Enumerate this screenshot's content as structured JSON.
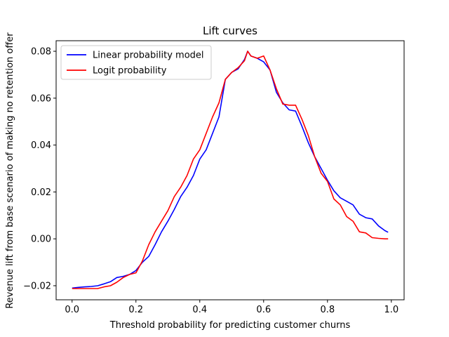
{
  "chart_data": {
    "type": "line",
    "title": "Lift curves",
    "xlabel": "Threshold probability for predicting customer churns",
    "ylabel": "Revenue lift from base scenario of making no retention offer",
    "xlim": [
      -0.05,
      1.04
    ],
    "ylim": [
      -0.026,
      0.0845
    ],
    "xticks": [
      0.0,
      0.2,
      0.4,
      0.6,
      0.8,
      1.0
    ],
    "xtick_labels": [
      "0.0",
      "0.2",
      "0.4",
      "0.6",
      "0.8",
      "1.0"
    ],
    "yticks": [
      -0.02,
      0.0,
      0.02,
      0.04,
      0.06,
      0.08
    ],
    "ytick_labels": [
      "−0.02",
      "0.00",
      "0.02",
      "0.04",
      "0.06",
      "0.08"
    ],
    "grid": false,
    "legend_position": "upper-left",
    "series": [
      {
        "name": "Linear probability model",
        "color": "#0000ff",
        "x": [
          0.0,
          0.02,
          0.04,
          0.06,
          0.08,
          0.1,
          0.12,
          0.14,
          0.16,
          0.18,
          0.2,
          0.22,
          0.24,
          0.26,
          0.28,
          0.3,
          0.32,
          0.34,
          0.36,
          0.38,
          0.4,
          0.42,
          0.44,
          0.46,
          0.48,
          0.5,
          0.52,
          0.54,
          0.55,
          0.56,
          0.58,
          0.6,
          0.62,
          0.64,
          0.66,
          0.68,
          0.7,
          0.72,
          0.74,
          0.76,
          0.78,
          0.8,
          0.82,
          0.84,
          0.86,
          0.88,
          0.9,
          0.92,
          0.94,
          0.96,
          0.98,
          0.99
        ],
        "y": [
          -0.021,
          -0.0207,
          -0.0205,
          -0.0203,
          -0.02,
          -0.0192,
          -0.0183,
          -0.0165,
          -0.016,
          -0.0152,
          -0.0135,
          -0.01,
          -0.0075,
          -0.0025,
          0.003,
          0.0075,
          0.0125,
          0.018,
          0.022,
          0.027,
          0.034,
          0.038,
          0.045,
          0.052,
          0.068,
          0.071,
          0.0725,
          0.0765,
          0.08,
          0.078,
          0.077,
          0.0755,
          0.072,
          0.0625,
          0.058,
          0.055,
          0.0545,
          0.048,
          0.041,
          0.035,
          0.03,
          0.025,
          0.0205,
          0.0175,
          0.016,
          0.0145,
          0.0105,
          0.009,
          0.0085,
          0.0055,
          0.0035,
          0.0028
        ]
      },
      {
        "name": "Logit probability",
        "color": "#ff0000",
        "x": [
          0.0,
          0.02,
          0.04,
          0.06,
          0.08,
          0.1,
          0.12,
          0.14,
          0.16,
          0.18,
          0.2,
          0.22,
          0.24,
          0.26,
          0.28,
          0.3,
          0.32,
          0.34,
          0.36,
          0.38,
          0.4,
          0.42,
          0.44,
          0.46,
          0.48,
          0.5,
          0.52,
          0.54,
          0.55,
          0.56,
          0.58,
          0.6,
          0.62,
          0.64,
          0.66,
          0.68,
          0.7,
          0.72,
          0.74,
          0.76,
          0.78,
          0.8,
          0.82,
          0.84,
          0.86,
          0.88,
          0.9,
          0.92,
          0.94,
          0.96,
          0.98,
          0.99
        ],
        "y": [
          -0.0212,
          -0.0212,
          -0.0212,
          -0.0212,
          -0.0212,
          -0.0205,
          -0.02,
          -0.0185,
          -0.0165,
          -0.0152,
          -0.0145,
          -0.0095,
          -0.0025,
          0.003,
          0.0075,
          0.012,
          0.018,
          0.022,
          0.027,
          0.034,
          0.038,
          0.045,
          0.052,
          0.058,
          0.068,
          0.071,
          0.073,
          0.076,
          0.08,
          0.078,
          0.077,
          0.078,
          0.072,
          0.064,
          0.0575,
          0.057,
          0.057,
          0.051,
          0.044,
          0.035,
          0.028,
          0.0245,
          0.017,
          0.0145,
          0.0095,
          0.0075,
          0.003,
          0.0025,
          0.0005,
          0.0002,
          0.0,
          0.0
        ]
      }
    ]
  }
}
